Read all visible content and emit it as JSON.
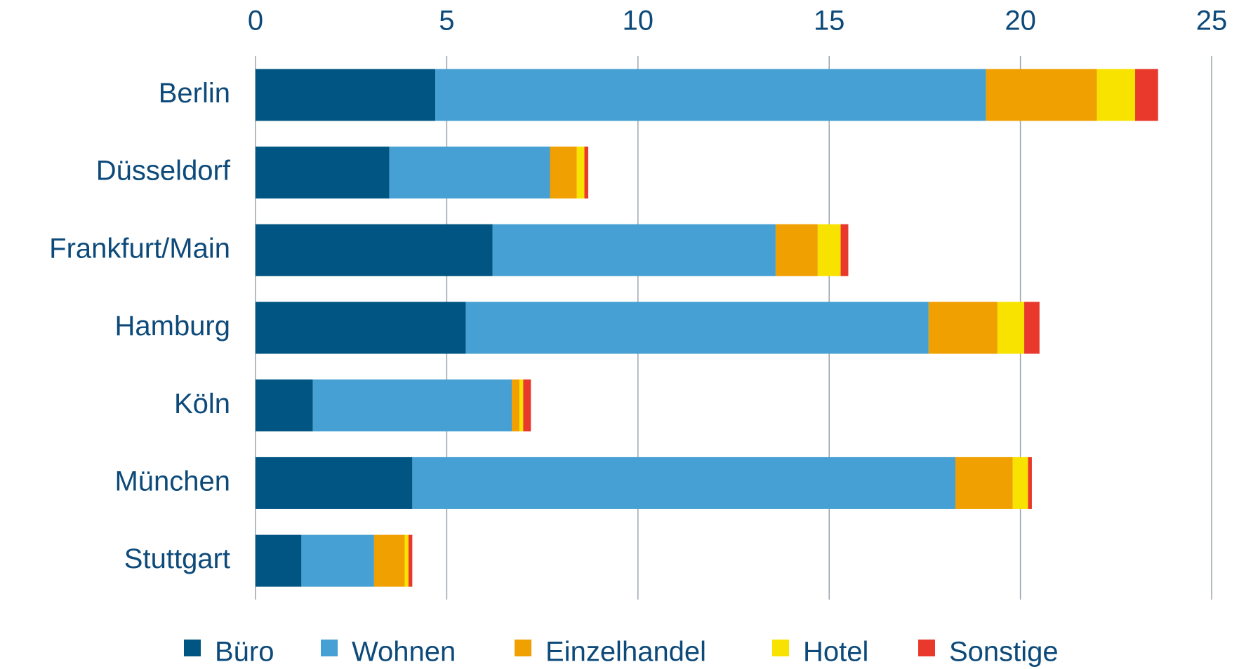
{
  "chart_data": {
    "type": "bar",
    "orientation": "horizontal",
    "stacked": true,
    "categories": [
      "Berlin",
      "Düsseldorf",
      "Frankfurt/Main",
      "Hamburg",
      "Köln",
      "München",
      "Stuttgart"
    ],
    "series": [
      {
        "name": "Büro",
        "color": "#005582",
        "values": [
          4.7,
          3.5,
          6.2,
          5.5,
          1.5,
          4.1,
          1.2
        ]
      },
      {
        "name": "Wohnen",
        "color": "#46a0d3",
        "values": [
          14.4,
          4.2,
          7.4,
          12.1,
          5.2,
          14.2,
          1.9
        ]
      },
      {
        "name": "Einzelhandel",
        "color": "#f0a000",
        "values": [
          2.9,
          0.7,
          1.1,
          1.8,
          0.2,
          1.5,
          0.8
        ]
      },
      {
        "name": "Hotel",
        "color": "#f8e300",
        "values": [
          1.0,
          0.2,
          0.6,
          0.7,
          0.1,
          0.4,
          0.1
        ]
      },
      {
        "name": "Sonstige",
        "color": "#e8392c",
        "values": [
          0.6,
          0.1,
          0.2,
          0.4,
          0.2,
          0.1,
          0.1
        ]
      }
    ],
    "xlim": [
      0,
      25
    ],
    "xticks": [
      0,
      5,
      10,
      15,
      20,
      25
    ],
    "grid": true,
    "legend": "bottom"
  }
}
